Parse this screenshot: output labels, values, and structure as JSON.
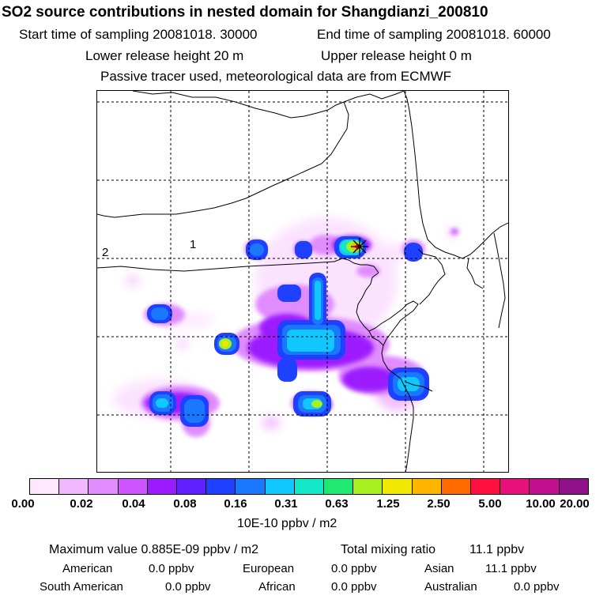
{
  "header": {
    "title": "SO2 source contributions in nested domain for Shangdianzi_200810",
    "start_label": "Start time of sampling 20081018. 30000",
    "end_label": "End time of sampling 20081018. 60000",
    "lower_label": "Lower release height   20 m",
    "upper_label": "Upper release height    0 m",
    "tracer_note": "Passive tracer used, meteorological data are from ECMWF"
  },
  "map": {
    "grid_labels": [
      "1",
      "2"
    ],
    "receptor_icon": "cross-star-icon",
    "colors": {
      "coast": "#000000",
      "grid": "#000000"
    }
  },
  "colorbar": {
    "colors": [
      "#ffe8ff",
      "#f2b8ff",
      "#e08cff",
      "#cc55ff",
      "#9d1cff",
      "#6020ff",
      "#2040ff",
      "#1a78ff",
      "#10c8ff",
      "#12e8c8",
      "#20e870",
      "#a8f020",
      "#f0e800",
      "#ffb400",
      "#ff6a00",
      "#ff1040",
      "#e8107a",
      "#c01090",
      "#90108a"
    ],
    "tick_labels": [
      "0.00",
      "0.02",
      "0.04",
      "0.08",
      "0.16",
      "0.31",
      "0.63",
      "1.25",
      "2.50",
      "5.00",
      "10.00",
      "20.00"
    ],
    "units": "10E-10 ppbv / m2"
  },
  "stats": {
    "max_label": "Maximum value  0.885E-09 ppbv / m2",
    "total_label": "Total mixing ratio",
    "total_value": "11.1 ppbv",
    "regions": [
      {
        "name": "American",
        "value": "0.0 ppbv"
      },
      {
        "name": "European",
        "value": "0.0 ppbv"
      },
      {
        "name": "Asian",
        "value": "11.1 ppbv"
      },
      {
        "name": "South American",
        "value": "0.0 ppbv"
      },
      {
        "name": "African",
        "value": "0.0 ppbv"
      },
      {
        "name": "Australian",
        "value": "0.0 ppbv"
      }
    ]
  }
}
